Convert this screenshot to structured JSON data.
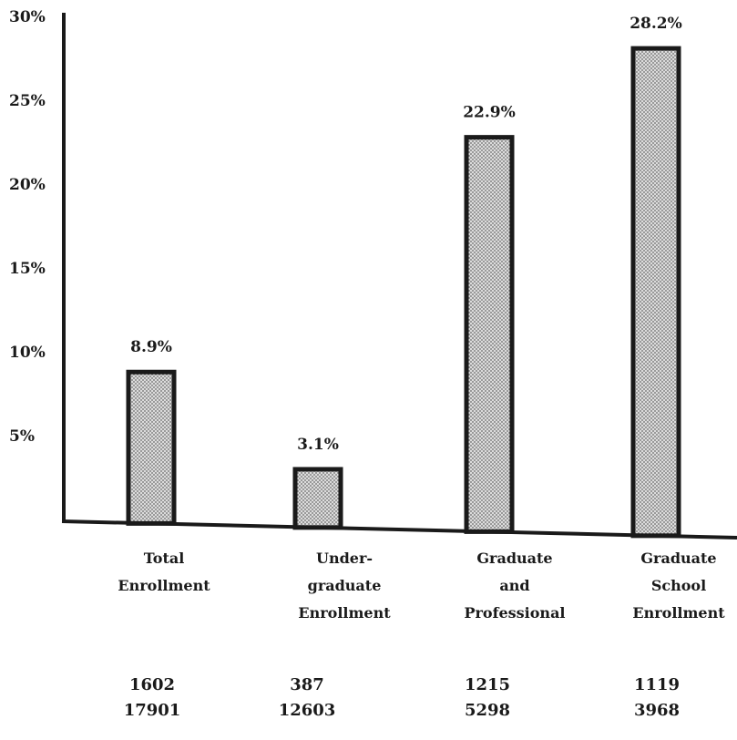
{
  "chart_data": {
    "type": "bar",
    "title": "",
    "xlabel": "",
    "ylabel": "",
    "ylim": [
      0,
      30
    ],
    "yticks": [
      "5%",
      "10%",
      "15%",
      "20%",
      "25%",
      "30%"
    ],
    "grid": false,
    "categories": [
      [
        "Total",
        "Enrollment"
      ],
      [
        "Under-",
        "graduate",
        "Enrollment"
      ],
      [
        "Graduate",
        "and",
        "Professional"
      ],
      [
        "Graduate",
        "School",
        "Enrollment"
      ]
    ],
    "values": [
      8.9,
      3.1,
      22.9,
      28.2
    ],
    "data_labels": [
      "8.9%",
      "3.1%",
      "22.9%",
      "28.2%"
    ],
    "counts": [
      [
        "1602",
        "17901"
      ],
      [
        "387",
        "12603"
      ],
      [
        "1215",
        "5298"
      ],
      [
        "1119",
        "3968"
      ]
    ],
    "colors": {
      "bar_fill": "#d8d8d8",
      "bar_dots": "#6a6a6a",
      "ink": "#1a1a1a"
    }
  }
}
